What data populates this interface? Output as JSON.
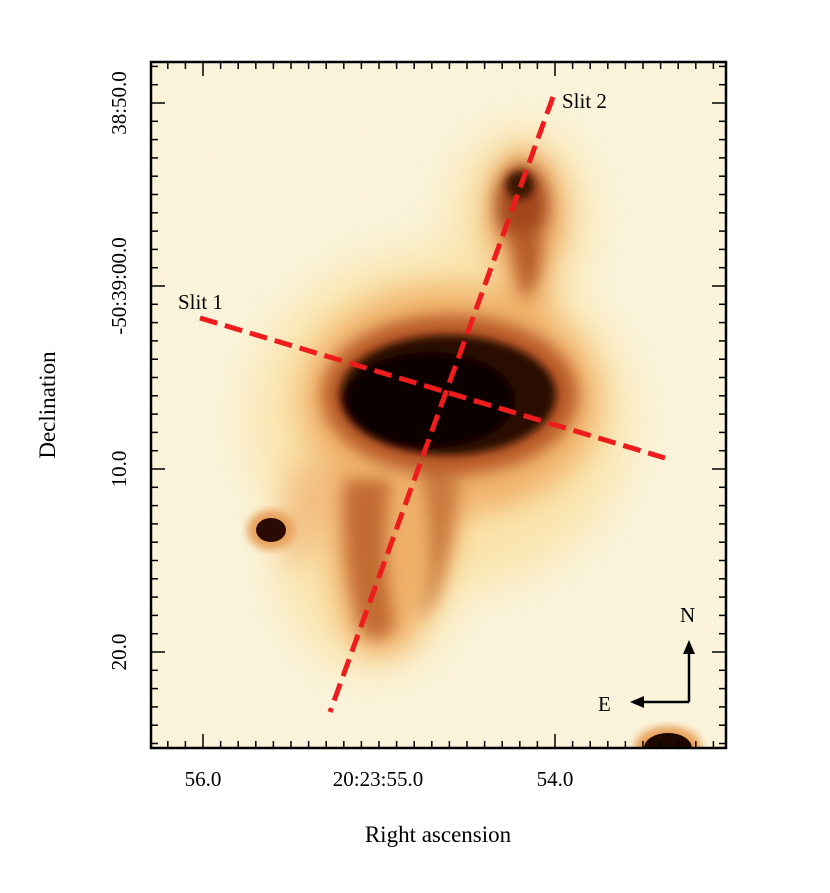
{
  "figure": {
    "xlabel": "Right ascension",
    "ylabel": "Declination",
    "x_ticks": [
      {
        "value": "56.0",
        "label": "56.0"
      },
      {
        "value": "20:23:55.0",
        "label": "20:23:55.0"
      },
      {
        "value": "54.0",
        "label": "54.0"
      }
    ],
    "y_ticks": [
      {
        "value": "38:50.0",
        "label": "38:50.0"
      },
      {
        "value": "-50:39:00.0",
        "label": "-50:39:00.0"
      },
      {
        "value": "10.0",
        "label": "10.0"
      },
      {
        "value": "20.0",
        "label": "20.0"
      }
    ],
    "slits": [
      {
        "name": "slit-1",
        "label": "Slit 1",
        "color": "#ee1c1c"
      },
      {
        "name": "slit-2",
        "label": "Slit 2",
        "color": "#ee1c1c"
      }
    ],
    "compass": {
      "north_label": "N",
      "east_label": "E"
    },
    "colormap": [
      "#fffbe6",
      "#fdebb4",
      "#f3b873",
      "#c96b32",
      "#7a2a10",
      "#1a0500"
    ]
  }
}
